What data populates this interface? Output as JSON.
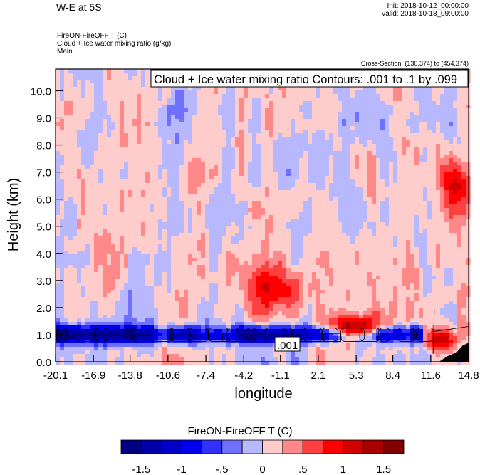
{
  "header": {
    "title": "W-E at 5S",
    "init": "Init: 2018-10-12_00:00:00",
    "valid": "Valid: 2018-10-18_09:00:00",
    "subtitle_lines": [
      "FireON-FireOFF T   (C)",
      "Cloud + Ice water mixing ratio   (g/kg)",
      "Main"
    ],
    "cross_section": "Cross-Section: (130,374) to (454,374)"
  },
  "chart_data": {
    "type": "heatmap",
    "contour_label": "Cloud + Ice water mixing ratio Contours: .001 to .1 by .099",
    "contour_line_label": ".001",
    "xlabel": "longitude",
    "ylabel": "Height (km)",
    "xlim": [
      -20.1,
      14.8
    ],
    "ylim": [
      0,
      10.8
    ],
    "xticks": [
      "-20.1",
      "-16.9",
      "-13.8",
      "-10.6",
      "-7.4",
      "-4.2",
      "-1.1",
      "2.1",
      "5.3",
      "8.4",
      "11.6",
      "14.8"
    ],
    "yticks": [
      "0.0",
      "1.0",
      "2.0",
      "3.0",
      "4.0",
      "5.0",
      "6.0",
      "7.0",
      "8.0",
      "9.0",
      "10.0"
    ],
    "colorbar": {
      "title": "FireON-FireOFF T  (C)",
      "levels": [
        -1.5,
        -1.25,
        -1,
        -0.75,
        -0.5,
        -0.25,
        0,
        0.25,
        0.5,
        0.75,
        1,
        1.25,
        1.5
      ],
      "labels": [
        "-1.5",
        "-1",
        "-.5",
        "0",
        ".5",
        "1",
        "1.5"
      ],
      "colors": [
        "#000080",
        "#0000a8",
        "#0000c8",
        "#0000ee",
        "#3030ff",
        "#7070ff",
        "#b8b8ff",
        "#ffcccc",
        "#ff8888",
        "#ff4040",
        "#ff0000",
        "#d00000",
        "#a80000",
        "#800000"
      ]
    },
    "features": [
      {
        "desc": "cool band",
        "lon": [
          -20.1,
          11
        ],
        "height_km": 1.0,
        "value": -1.5
      },
      {
        "desc": "warm core",
        "lon": 5.0,
        "height_km": 1.2,
        "value": 1.6
      },
      {
        "desc": "warm patch",
        "lon": -1.5,
        "height_km": 2.7,
        "value": 0.9
      },
      {
        "desc": "warm patch",
        "lon": 13.8,
        "height_km": 6.6,
        "value": 1.0
      },
      {
        "desc": "warm low levels",
        "lon": 12.5,
        "height_km": 0.8,
        "value": 1.2
      }
    ]
  }
}
